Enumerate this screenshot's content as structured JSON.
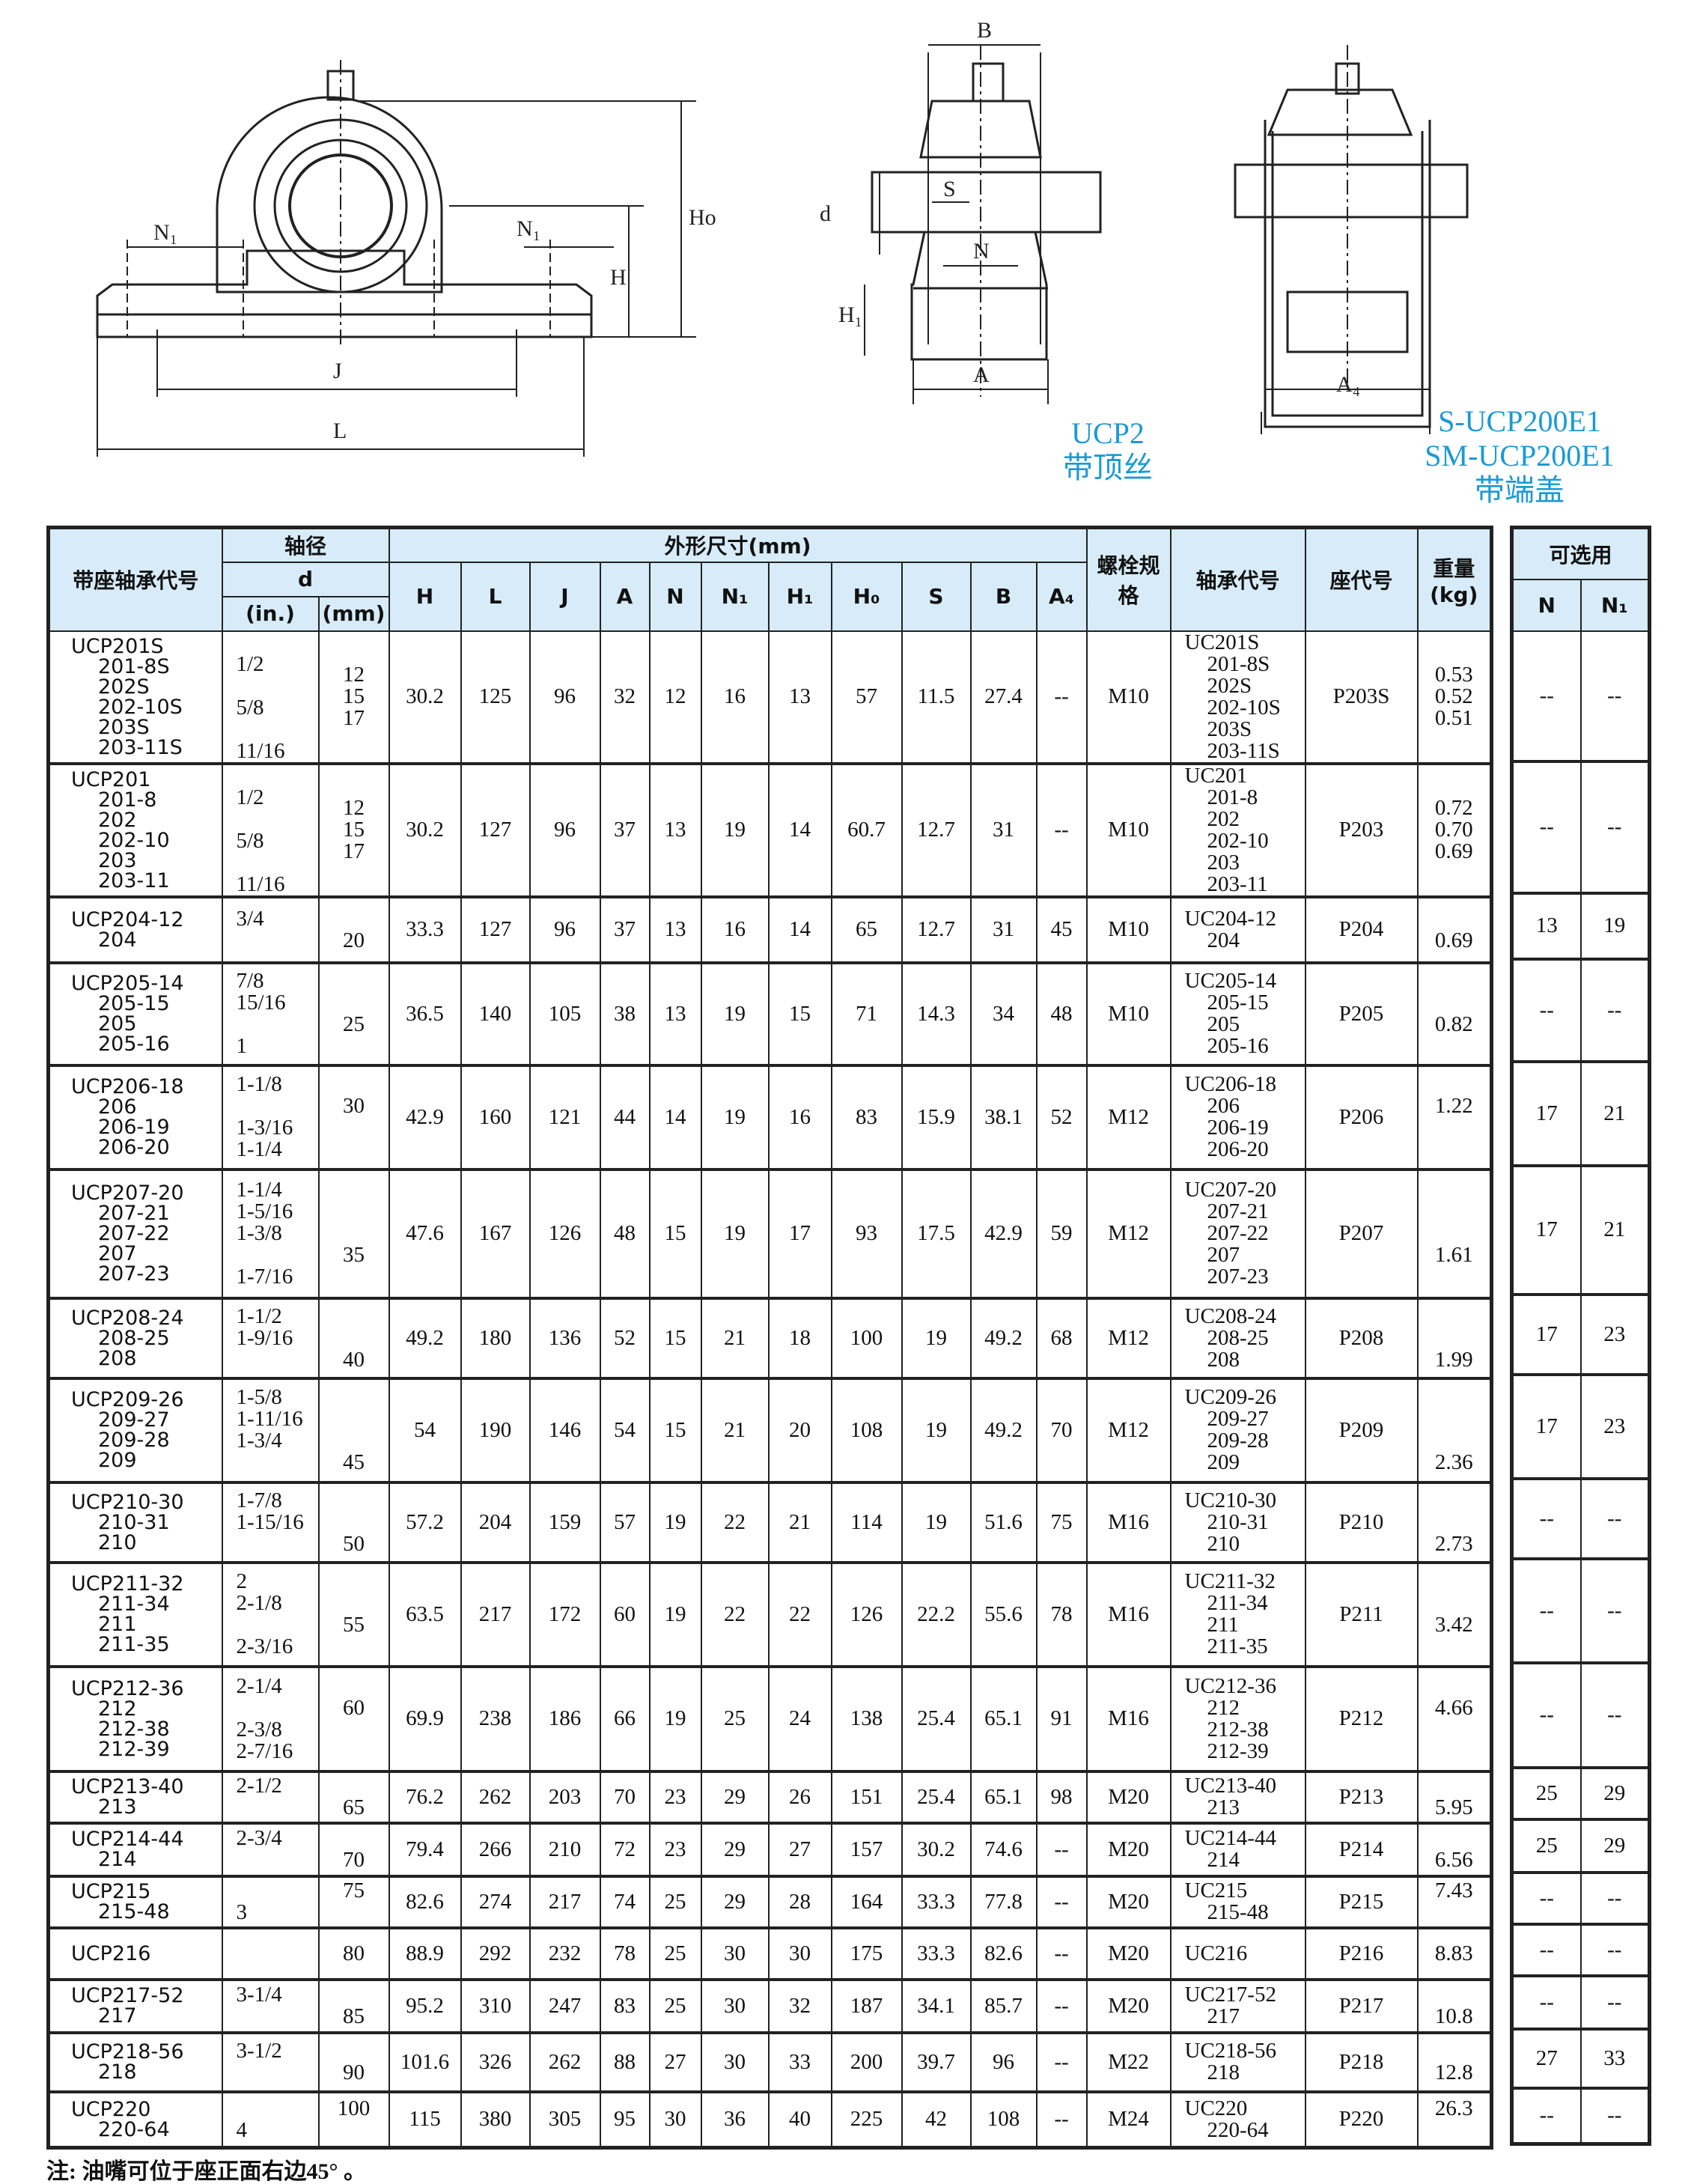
{
  "drawings": {
    "left": {
      "labels": {
        "n1_left": "N₁",
        "n1_right": "N₁",
        "ho": "Ho",
        "h": "H",
        "j": "J",
        "l": "L"
      }
    },
    "middle": {
      "labels": {
        "b": "B",
        "s": "S",
        "d": "d",
        "n": "N",
        "h1": "H₁",
        "a": "A"
      },
      "caption": [
        "UCP2",
        "带顶丝"
      ]
    },
    "right": {
      "labels": {
        "a4": "A₄"
      },
      "caption": [
        "S-UCP200E1",
        "SM-UCP200E1",
        "带端盖"
      ]
    }
  },
  "accent_color": "#1a9ad6",
  "header_bg": "#d7ecf8",
  "table": {
    "headers": {
      "unit_code": "带座轴承代号",
      "shaft": "轴径",
      "d": "d",
      "inch": "(in.)",
      "mm": "(mm)",
      "dims": "外形尺寸(mm)",
      "dim_cols": [
        "H",
        "L",
        "J",
        "A",
        "N",
        "N₁",
        "H₁",
        "H₀",
        "S",
        "B",
        "A₄"
      ],
      "bolt": "螺栓规格",
      "bearing": "轴承代号",
      "housing": "座代号",
      "weight": "重量(kg)",
      "optional": "可选用",
      "opt_cols": [
        "N",
        "N₁"
      ]
    },
    "rows": [
      {
        "codes": [
          "UCP201S",
          "201-8S",
          "202S",
          "202-10S",
          "203S",
          "203-11S"
        ],
        "inch": [
          "",
          "1/2",
          "",
          "5/8",
          "",
          "11/16"
        ],
        "mm": [
          "12",
          "15",
          "17"
        ],
        "dims": [
          "30.2",
          "125",
          "96",
          "32",
          "12",
          "16",
          "13",
          "57",
          "11.5",
          "27.4",
          "--"
        ],
        "bolt": "M10",
        "bearing": [
          "UC201S",
          "201-8S",
          "202S",
          "202-10S",
          "203S",
          "203-11S"
        ],
        "housing": "P203S",
        "weight": [
          "0.53",
          "0.52",
          "0.51"
        ],
        "opt": [
          "--",
          "--"
        ]
      },
      {
        "codes": [
          "UCP201",
          "201-8",
          "202",
          "202-10",
          "203",
          "203-11"
        ],
        "inch": [
          "",
          "1/2",
          "",
          "5/8",
          "",
          "11/16"
        ],
        "mm": [
          "12",
          "15",
          "17"
        ],
        "dims": [
          "30.2",
          "127",
          "96",
          "37",
          "13",
          "19",
          "14",
          "60.7",
          "12.7",
          "31",
          "--"
        ],
        "bolt": "M10",
        "bearing": [
          "UC201",
          "201-8",
          "202",
          "202-10",
          "203",
          "203-11"
        ],
        "housing": "P203",
        "weight": [
          "0.72",
          "0.70",
          "0.69"
        ],
        "opt": [
          "--",
          "--"
        ]
      },
      {
        "codes": [
          "UCP204-12",
          "204"
        ],
        "inch": [
          "3/4",
          ""
        ],
        "mm": [
          "",
          "20"
        ],
        "dims": [
          "33.3",
          "127",
          "96",
          "37",
          "13",
          "16",
          "14",
          "65",
          "12.7",
          "31",
          "45"
        ],
        "bolt": "M10",
        "bearing": [
          "UC204-12",
          "204"
        ],
        "housing": "P204",
        "weight": [
          "",
          "0.69"
        ],
        "opt": [
          "13",
          "19"
        ]
      },
      {
        "codes": [
          "UCP205-14",
          "205-15",
          "205",
          "205-16"
        ],
        "inch": [
          "7/8",
          "15/16",
          "",
          "1"
        ],
        "mm": [
          "",
          "",
          "25",
          ""
        ],
        "dims": [
          "36.5",
          "140",
          "105",
          "38",
          "13",
          "19",
          "15",
          "71",
          "14.3",
          "34",
          "48"
        ],
        "bolt": "M10",
        "bearing": [
          "UC205-14",
          "205-15",
          "205",
          "205-16"
        ],
        "housing": "P205",
        "weight": [
          "",
          "",
          "0.82",
          ""
        ],
        "opt": [
          "--",
          "--"
        ]
      },
      {
        "codes": [
          "UCP206-18",
          "206",
          "206-19",
          "206-20"
        ],
        "inch": [
          "1-1/8",
          "",
          "1-3/16",
          "1-1/4"
        ],
        "mm": [
          "",
          "30",
          "",
          ""
        ],
        "dims": [
          "42.9",
          "160",
          "121",
          "44",
          "14",
          "19",
          "16",
          "83",
          "15.9",
          "38.1",
          "52"
        ],
        "bolt": "M12",
        "bearing": [
          "UC206-18",
          "206",
          "206-19",
          "206-20"
        ],
        "housing": "P206",
        "weight": [
          "",
          "1.22",
          "",
          ""
        ],
        "opt": [
          "17",
          "21"
        ]
      },
      {
        "codes": [
          "UCP207-20",
          "207-21",
          "207-22",
          "207",
          "207-23"
        ],
        "inch": [
          "1-1/4",
          "1-5/16",
          "1-3/8",
          "",
          "1-7/16"
        ],
        "mm": [
          "",
          "",
          "",
          "35",
          ""
        ],
        "dims": [
          "47.6",
          "167",
          "126",
          "48",
          "15",
          "19",
          "17",
          "93",
          "17.5",
          "42.9",
          "59"
        ],
        "bolt": "M12",
        "bearing": [
          "UC207-20",
          "207-21",
          "207-22",
          "207",
          "207-23"
        ],
        "housing": "P207",
        "weight": [
          "",
          "",
          "",
          "1.61",
          ""
        ],
        "opt": [
          "17",
          "21"
        ]
      },
      {
        "codes": [
          "UCP208-24",
          "208-25",
          "208"
        ],
        "inch": [
          "1-1/2",
          "1-9/16",
          ""
        ],
        "mm": [
          "",
          "",
          "40"
        ],
        "dims": [
          "49.2",
          "180",
          "136",
          "52",
          "15",
          "21",
          "18",
          "100",
          "19",
          "49.2",
          "68"
        ],
        "bolt": "M12",
        "bearing": [
          "UC208-24",
          "208-25",
          "208"
        ],
        "housing": "P208",
        "weight": [
          "",
          "",
          "1.99"
        ],
        "opt": [
          "17",
          "23"
        ]
      },
      {
        "codes": [
          "UCP209-26",
          "209-27",
          "209-28",
          "209"
        ],
        "inch": [
          "1-5/8",
          "1-11/16",
          "1-3/4",
          ""
        ],
        "mm": [
          "",
          "",
          "",
          "45"
        ],
        "dims": [
          "54",
          "190",
          "146",
          "54",
          "15",
          "21",
          "20",
          "108",
          "19",
          "49.2",
          "70"
        ],
        "bolt": "M12",
        "bearing": [
          "UC209-26",
          "209-27",
          "209-28",
          "209"
        ],
        "housing": "P209",
        "weight": [
          "",
          "",
          "",
          "2.36"
        ],
        "opt": [
          "17",
          "23"
        ]
      },
      {
        "codes": [
          "UCP210-30",
          "210-31",
          "210"
        ],
        "inch": [
          "1-7/8",
          "1-15/16",
          ""
        ],
        "mm": [
          "",
          "",
          "50"
        ],
        "dims": [
          "57.2",
          "204",
          "159",
          "57",
          "19",
          "22",
          "21",
          "114",
          "19",
          "51.6",
          "75"
        ],
        "bolt": "M16",
        "bearing": [
          "UC210-30",
          "210-31",
          "210"
        ],
        "housing": "P210",
        "weight": [
          "",
          "",
          "2.73"
        ],
        "opt": [
          "--",
          "--"
        ]
      },
      {
        "codes": [
          "UCP211-32",
          "211-34",
          "211",
          "211-35"
        ],
        "inch": [
          "2",
          "2-1/8",
          "",
          "2-3/16"
        ],
        "mm": [
          "",
          "",
          "55",
          ""
        ],
        "dims": [
          "63.5",
          "217",
          "172",
          "60",
          "19",
          "22",
          "22",
          "126",
          "22.2",
          "55.6",
          "78"
        ],
        "bolt": "M16",
        "bearing": [
          "UC211-32",
          "211-34",
          "211",
          "211-35"
        ],
        "housing": "P211",
        "weight": [
          "",
          "",
          "3.42",
          ""
        ],
        "opt": [
          "--",
          "--"
        ]
      },
      {
        "codes": [
          "UCP212-36",
          "212",
          "212-38",
          "212-39"
        ],
        "inch": [
          "2-1/4",
          "",
          "2-3/8",
          "2-7/16"
        ],
        "mm": [
          "",
          "60",
          "",
          ""
        ],
        "dims": [
          "69.9",
          "238",
          "186",
          "66",
          "19",
          "25",
          "24",
          "138",
          "25.4",
          "65.1",
          "91"
        ],
        "bolt": "M16",
        "bearing": [
          "UC212-36",
          "212",
          "212-38",
          "212-39"
        ],
        "housing": "P212",
        "weight": [
          "",
          "4.66",
          "",
          ""
        ],
        "opt": [
          "--",
          "--"
        ]
      },
      {
        "codes": [
          "UCP213-40",
          "213"
        ],
        "inch": [
          "2-1/2",
          ""
        ],
        "mm": [
          "",
          "65"
        ],
        "dims": [
          "76.2",
          "262",
          "203",
          "70",
          "23",
          "29",
          "26",
          "151",
          "25.4",
          "65.1",
          "98"
        ],
        "bolt": "M20",
        "bearing": [
          "UC213-40",
          "213"
        ],
        "housing": "P213",
        "weight": [
          "",
          "5.95"
        ],
        "opt": [
          "25",
          "29"
        ]
      },
      {
        "codes": [
          "UCP214-44",
          "214"
        ],
        "inch": [
          "2-3/4",
          ""
        ],
        "mm": [
          "",
          "70"
        ],
        "dims": [
          "79.4",
          "266",
          "210",
          "72",
          "23",
          "29",
          "27",
          "157",
          "30.2",
          "74.6",
          "--"
        ],
        "bolt": "M20",
        "bearing": [
          "UC214-44",
          "214"
        ],
        "housing": "P214",
        "weight": [
          "",
          "6.56"
        ],
        "opt": [
          "25",
          "29"
        ]
      },
      {
        "codes": [
          "UCP215",
          "215-48"
        ],
        "inch": [
          "",
          "3"
        ],
        "mm": [
          "75",
          ""
        ],
        "dims": [
          "82.6",
          "274",
          "217",
          "74",
          "25",
          "29",
          "28",
          "164",
          "33.3",
          "77.8",
          "--"
        ],
        "bolt": "M20",
        "bearing": [
          "UC215",
          "215-48"
        ],
        "housing": "P215",
        "weight": [
          "7.43",
          ""
        ],
        "opt": [
          "--",
          "--"
        ]
      },
      {
        "codes": [
          "UCP216"
        ],
        "inch": [
          ""
        ],
        "mm": [
          "80"
        ],
        "dims": [
          "88.9",
          "292",
          "232",
          "78",
          "25",
          "30",
          "30",
          "175",
          "33.3",
          "82.6",
          "--"
        ],
        "bolt": "M20",
        "bearing": [
          "UC216"
        ],
        "housing": "P216",
        "weight": [
          "8.83"
        ],
        "opt": [
          "--",
          "--"
        ]
      },
      {
        "codes": [
          "UCP217-52",
          "217"
        ],
        "inch": [
          "3-1/4",
          ""
        ],
        "mm": [
          "",
          "85"
        ],
        "dims": [
          "95.2",
          "310",
          "247",
          "83",
          "25",
          "30",
          "32",
          "187",
          "34.1",
          "85.7",
          "--"
        ],
        "bolt": "M20",
        "bearing": [
          "UC217-52",
          "217"
        ],
        "housing": "P217",
        "weight": [
          "",
          "10.8"
        ],
        "opt": [
          "--",
          "--"
        ]
      },
      {
        "codes": [
          "UCP218-56",
          "218"
        ],
        "inch": [
          "3-1/2",
          ""
        ],
        "mm": [
          "",
          "90"
        ],
        "dims": [
          "101.6",
          "326",
          "262",
          "88",
          "27",
          "30",
          "33",
          "200",
          "39.7",
          "96",
          "--"
        ],
        "bolt": "M22",
        "bearing": [
          "UC218-56",
          "218"
        ],
        "housing": "P218",
        "weight": [
          "",
          "12.8"
        ],
        "opt": [
          "27",
          "33"
        ]
      },
      {
        "codes": [
          "UCP220",
          "220-64"
        ],
        "inch": [
          "",
          "4"
        ],
        "mm": [
          "100",
          ""
        ],
        "dims": [
          "115",
          "380",
          "305",
          "95",
          "30",
          "36",
          "40",
          "225",
          "42",
          "108",
          "--"
        ],
        "bolt": "M24",
        "bearing": [
          "UC220",
          "220-64"
        ],
        "housing": "P220",
        "weight": [
          "26.3",
          ""
        ],
        "opt": [
          "--",
          "--"
        ]
      }
    ]
  },
  "note": "注:  油嘴可位于座正面右边45°  。"
}
